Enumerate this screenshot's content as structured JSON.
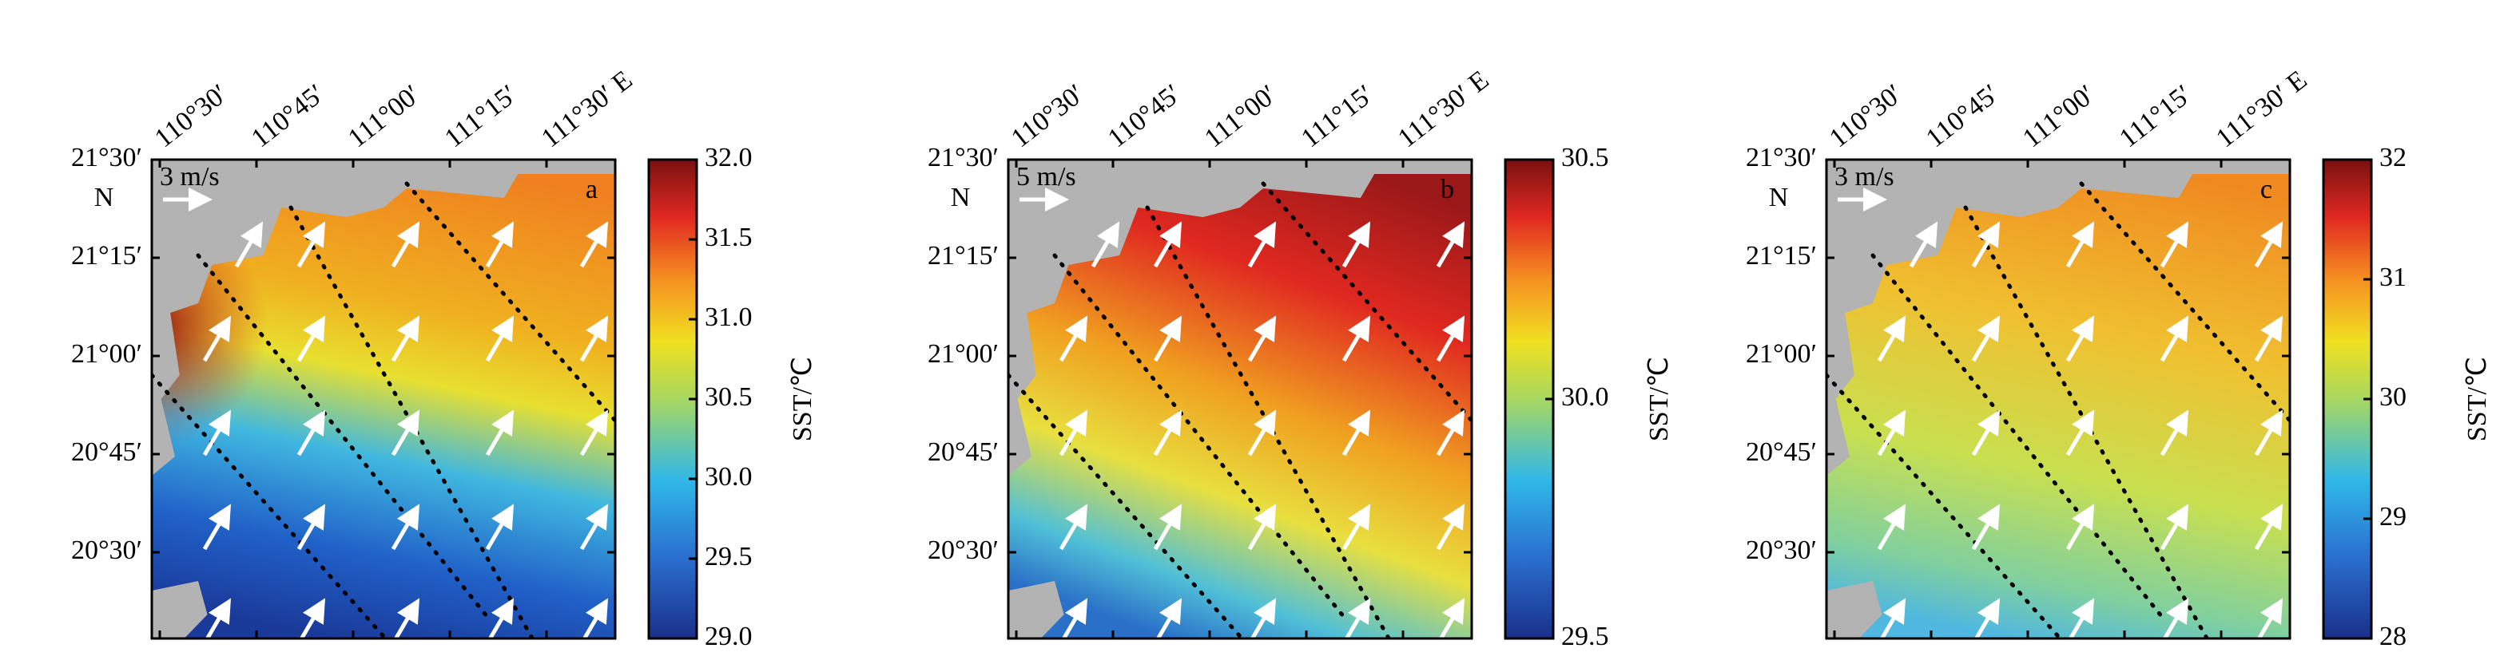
{
  "lon_labels": [
    "110°30′",
    "110°45′",
    "111°00′",
    "111°15′",
    "111°30′ E"
  ],
  "lat_labels": [
    "21°30′",
    "21°15′",
    "21°00′",
    "20°45′",
    "20°30′"
  ],
  "lat_suffix": "N",
  "panels": [
    {
      "letter": "a",
      "scale_label": "3 m/s",
      "colorbar": {
        "label": "SST/℃",
        "clim": [
          29,
          32
        ],
        "ticks": [
          {
            "value": 29,
            "label": "29.0"
          },
          29.5,
          {
            "value": 30,
            "label": "30.0"
          },
          30.5,
          {
            "value": 31,
            "label": "31.0"
          },
          31.5,
          {
            "value": 32,
            "label": "32.0"
          }
        ]
      }
    },
    {
      "letter": "b",
      "scale_label": "5 m/s",
      "colorbar": {
        "label": "SST/℃",
        "clim": [
          29.5,
          30.5
        ],
        "ticks": [
          29.5,
          {
            "value": 30,
            "label": "30.0"
          },
          30.5
        ]
      }
    },
    {
      "letter": "c",
      "scale_label": "3 m/s",
      "colorbar": {
        "label": "SST/℃",
        "clim": [
          28,
          32
        ],
        "ticks": [
          28,
          29,
          30,
          31,
          32
        ]
      }
    }
  ]
}
